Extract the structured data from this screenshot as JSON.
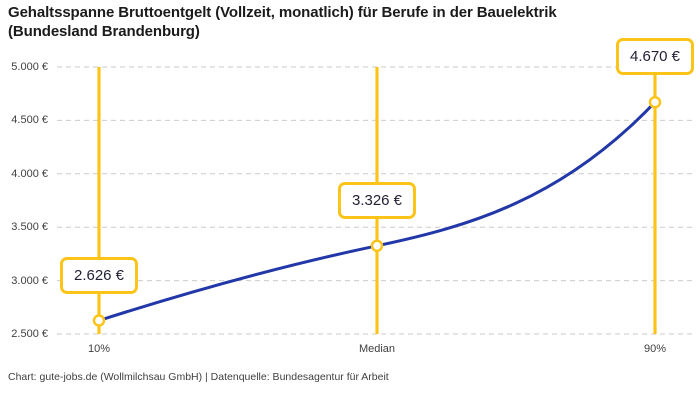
{
  "title": "Gehaltsspanne Bruttoentgelt (Vollzeit, monatlich) für Berufe in der Bauelektrik\n(Bundesland Brandenburg)",
  "footer": "Chart: gute-jobs.de (Wollmilchsau GmbH) | Datenquelle: Bundesagentur für Arbeit",
  "colors": {
    "accent_yellow": "#FCC419",
    "curve_blue": "#2338A8",
    "grid_gray": "#CBCBCB",
    "title_text": "#1B1B1B",
    "tick_text": "#3F3F3F",
    "box_text": "#222236",
    "background": "#FFFFFF"
  },
  "chart_data": {
    "type": "line",
    "title": "Gehaltsspanne Bruttoentgelt (Vollzeit, monatlich) für Berufe in der Bauelektrik (Bundesland Brandenburg)",
    "categories": [
      "10%",
      "Median",
      "90%"
    ],
    "values": [
      2626,
      3326,
      4670
    ],
    "point_labels": [
      "2.626 €",
      "3.326 €",
      "4.670 €"
    ],
    "series_name": "Bruttoentgelt",
    "unit": "€",
    "ylim": [
      2500,
      5000
    ],
    "y_tick_values": [
      2500,
      3000,
      3500,
      4000,
      4500,
      5000
    ],
    "y_tick_labels": [
      "2.500 €",
      "3.000 €",
      "3.500 €",
      "4.000 €",
      "4.500 €",
      "5.000 €"
    ],
    "xlabel": "",
    "ylabel": "",
    "grid": "horizontal-dashed",
    "legend": "none",
    "marker_style": "vertical-yellow-line-with-open-circle-and-callout",
    "source": "Chart: gute-jobs.de (Wollmilchsau GmbH) | Datenquelle: Bundesagentur für Arbeit"
  }
}
